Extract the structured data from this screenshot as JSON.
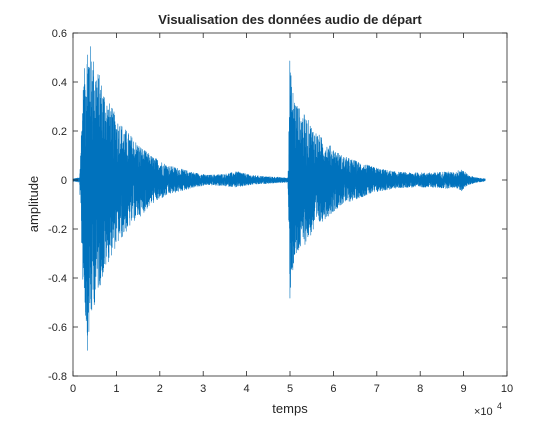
{
  "chart_data": {
    "type": "line",
    "title": "Visualisation des données audio de départ",
    "xlabel": "temps",
    "ylabel": "amplitude",
    "x_exponent_label": "×10",
    "x_exponent_power": "4",
    "xlim": [
      0,
      100000
    ],
    "ylim": [
      -0.8,
      0.6
    ],
    "x_ticks": [
      0,
      10000,
      20000,
      30000,
      40000,
      50000,
      60000,
      70000,
      80000,
      90000,
      100000
    ],
    "x_tick_labels": [
      "0",
      "1",
      "2",
      "3",
      "4",
      "5",
      "6",
      "7",
      "8",
      "9",
      "10"
    ],
    "y_ticks": [
      -0.8,
      -0.6,
      -0.4,
      -0.2,
      0,
      0.2,
      0.4,
      0.6
    ],
    "y_tick_labels": [
      "-0.8",
      "-0.6",
      "-0.4",
      "-0.2",
      "0",
      "0.2",
      "0.4",
      "0.6"
    ],
    "grid": false,
    "line_color": "#0072bd",
    "series": [
      {
        "x": [
          0,
          1500,
          2200,
          2800,
          3300,
          4000,
          4800,
          5500,
          6500,
          8000,
          10000,
          12000,
          14000,
          16000,
          18000,
          20000,
          22000,
          25000,
          28000,
          31000,
          35000,
          38000,
          41000,
          44000,
          47000,
          48500,
          49500,
          50000,
          50300,
          51000,
          52000,
          54000,
          56000,
          58000,
          60000,
          62000,
          65000,
          68000,
          71000,
          74000,
          77000,
          80000,
          83000,
          86000,
          88000,
          89500,
          91000,
          93000,
          95000
        ],
        "upper": [
          0.005,
          0.01,
          0.35,
          0.5,
          0.58,
          0.56,
          0.5,
          0.46,
          0.41,
          0.33,
          0.26,
          0.21,
          0.17,
          0.13,
          0.1,
          0.08,
          0.06,
          0.045,
          0.03,
          0.02,
          0.025,
          0.035,
          0.02,
          0.015,
          0.012,
          0.01,
          0.01,
          0.55,
          0.4,
          0.35,
          0.3,
          0.25,
          0.2,
          0.16,
          0.13,
          0.1,
          0.08,
          0.06,
          0.045,
          0.035,
          0.03,
          0.03,
          0.03,
          0.035,
          0.03,
          0.05,
          0.02,
          0.01,
          0.005
        ],
        "lower": [
          -0.005,
          -0.01,
          -0.4,
          -0.55,
          -0.7,
          -0.6,
          -0.52,
          -0.47,
          -0.42,
          -0.34,
          -0.27,
          -0.22,
          -0.17,
          -0.14,
          -0.1,
          -0.08,
          -0.06,
          -0.045,
          -0.03,
          -0.02,
          -0.025,
          -0.03,
          -0.02,
          -0.015,
          -0.012,
          -0.01,
          -0.01,
          -0.51,
          -0.4,
          -0.36,
          -0.3,
          -0.25,
          -0.2,
          -0.16,
          -0.13,
          -0.1,
          -0.08,
          -0.06,
          -0.045,
          -0.035,
          -0.03,
          -0.03,
          -0.03,
          -0.035,
          -0.03,
          -0.045,
          -0.02,
          -0.01,
          -0.005
        ]
      }
    ]
  }
}
